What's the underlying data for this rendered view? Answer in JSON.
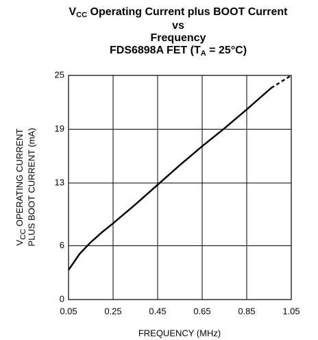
{
  "chart_data": {
    "type": "line",
    "title": [
      [
        "V",
        "CC",
        " Operating Current plus BOOT Current"
      ],
      [
        "vs"
      ],
      [
        "Frequency"
      ],
      [
        "FDS6898A FET (T",
        "A",
        " = 25°C)"
      ]
    ],
    "y_label": [
      [
        "V",
        "CC",
        " OPERATING CURRENT"
      ],
      [
        "PLUS BOOT CURRENT (mA)"
      ]
    ],
    "x_label": "FREQUENCY (MHz)",
    "xlim": [
      0.05,
      1.05
    ],
    "xticks": [
      0.05,
      0.25,
      0.45,
      0.65,
      0.85,
      1.05
    ],
    "ylim": [
      0,
      25
    ],
    "yticks": [
      0,
      6,
      13,
      19,
      25
    ],
    "grid": true,
    "series": [
      {
        "color": "#000000",
        "style": "solid",
        "x": [
          0.05,
          0.1,
          0.15,
          0.2,
          0.25,
          0.35,
          0.45,
          0.55,
          0.65,
          0.75,
          0.85,
          0.96
        ],
        "values": [
          3.3,
          5.1,
          6.4,
          7.5,
          8.5,
          10.6,
          12.8,
          15.0,
          17.1,
          19.1,
          21.2,
          23.6
        ]
      },
      {
        "color": "#000000",
        "style": "dashed",
        "x": [
          0.96,
          1.05
        ],
        "values": [
          23.6,
          25
        ]
      }
    ]
  }
}
